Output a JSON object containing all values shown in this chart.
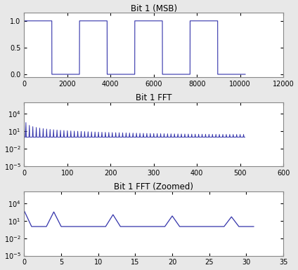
{
  "title1": "Bit 1 (MSB)",
  "title2": "Bit 1 FFT",
  "title3": "Bit 1 FFT (Zoomed)",
  "N_fft": 1024,
  "freq_sine": 4,
  "num_bits": 8,
  "n_time_samples": 10240,
  "line_color": "#3333aa",
  "bg_color": "#e8e8e8",
  "plot_bg": "#ffffff",
  "title_fontsize": 8.5,
  "tick_fontsize": 7,
  "xlim1": [
    0,
    12000
  ],
  "ylim1": [
    -0.05,
    1.15
  ],
  "xlim2": [
    0,
    600
  ],
  "ylim2": [
    1e-05,
    1000000.0
  ],
  "xlim3": [
    0,
    35
  ],
  "ylim3": [
    1e-05,
    1000000.0
  ]
}
